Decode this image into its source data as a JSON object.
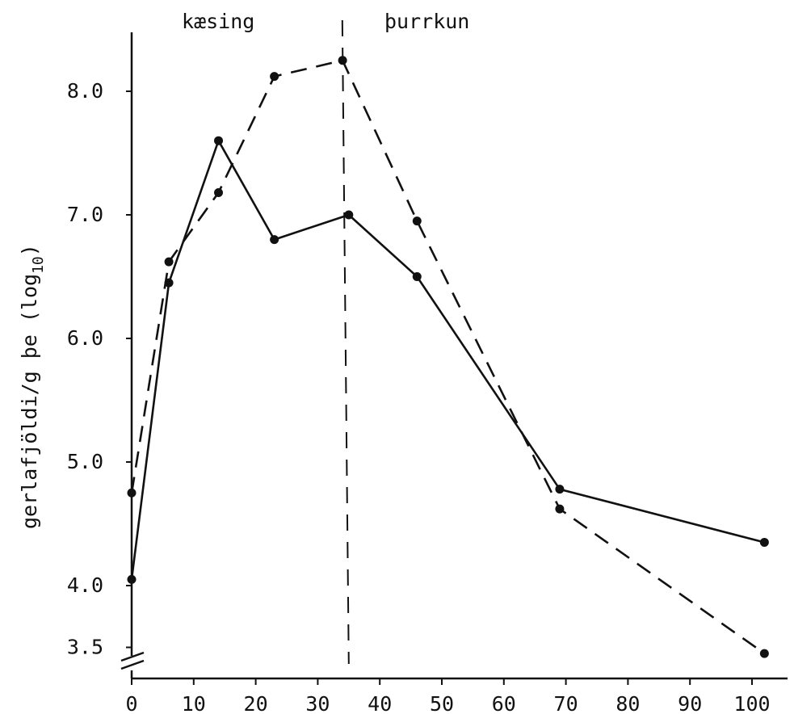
{
  "chart_data": {
    "type": "line",
    "xlabel": "",
    "ylabel": "gerlafjöldi/g þe (log",
    "ylabel_subscript": "10",
    "ylabel_close": ")",
    "x_ticks": [
      "0",
      "10",
      "20",
      "30",
      "40",
      "50",
      "60",
      "70",
      "80",
      "90",
      "100"
    ],
    "y_ticks": [
      "3.5",
      "4.0",
      "5.0",
      "6.0",
      "7.0",
      "8.0"
    ],
    "xlim": [
      0,
      105
    ],
    "ylim": [
      3.3,
      8.6
    ],
    "axis_break": "y",
    "phase_divider_x": 35,
    "phase_labels": [
      "kæsing",
      "þurrkun"
    ],
    "series": [
      {
        "style": "solid",
        "color": "#111111",
        "x": [
          0,
          6,
          14,
          23,
          35,
          46,
          69,
          102
        ],
        "y": [
          4.05,
          6.45,
          7.6,
          6.8,
          7.0,
          6.5,
          4.78,
          4.35
        ]
      },
      {
        "style": "dashed",
        "color": "#111111",
        "x": [
          0,
          6,
          14,
          23,
          34,
          46,
          69,
          102
        ],
        "y": [
          4.75,
          6.62,
          7.18,
          8.12,
          8.25,
          6.95,
          4.62,
          3.45
        ]
      }
    ]
  }
}
